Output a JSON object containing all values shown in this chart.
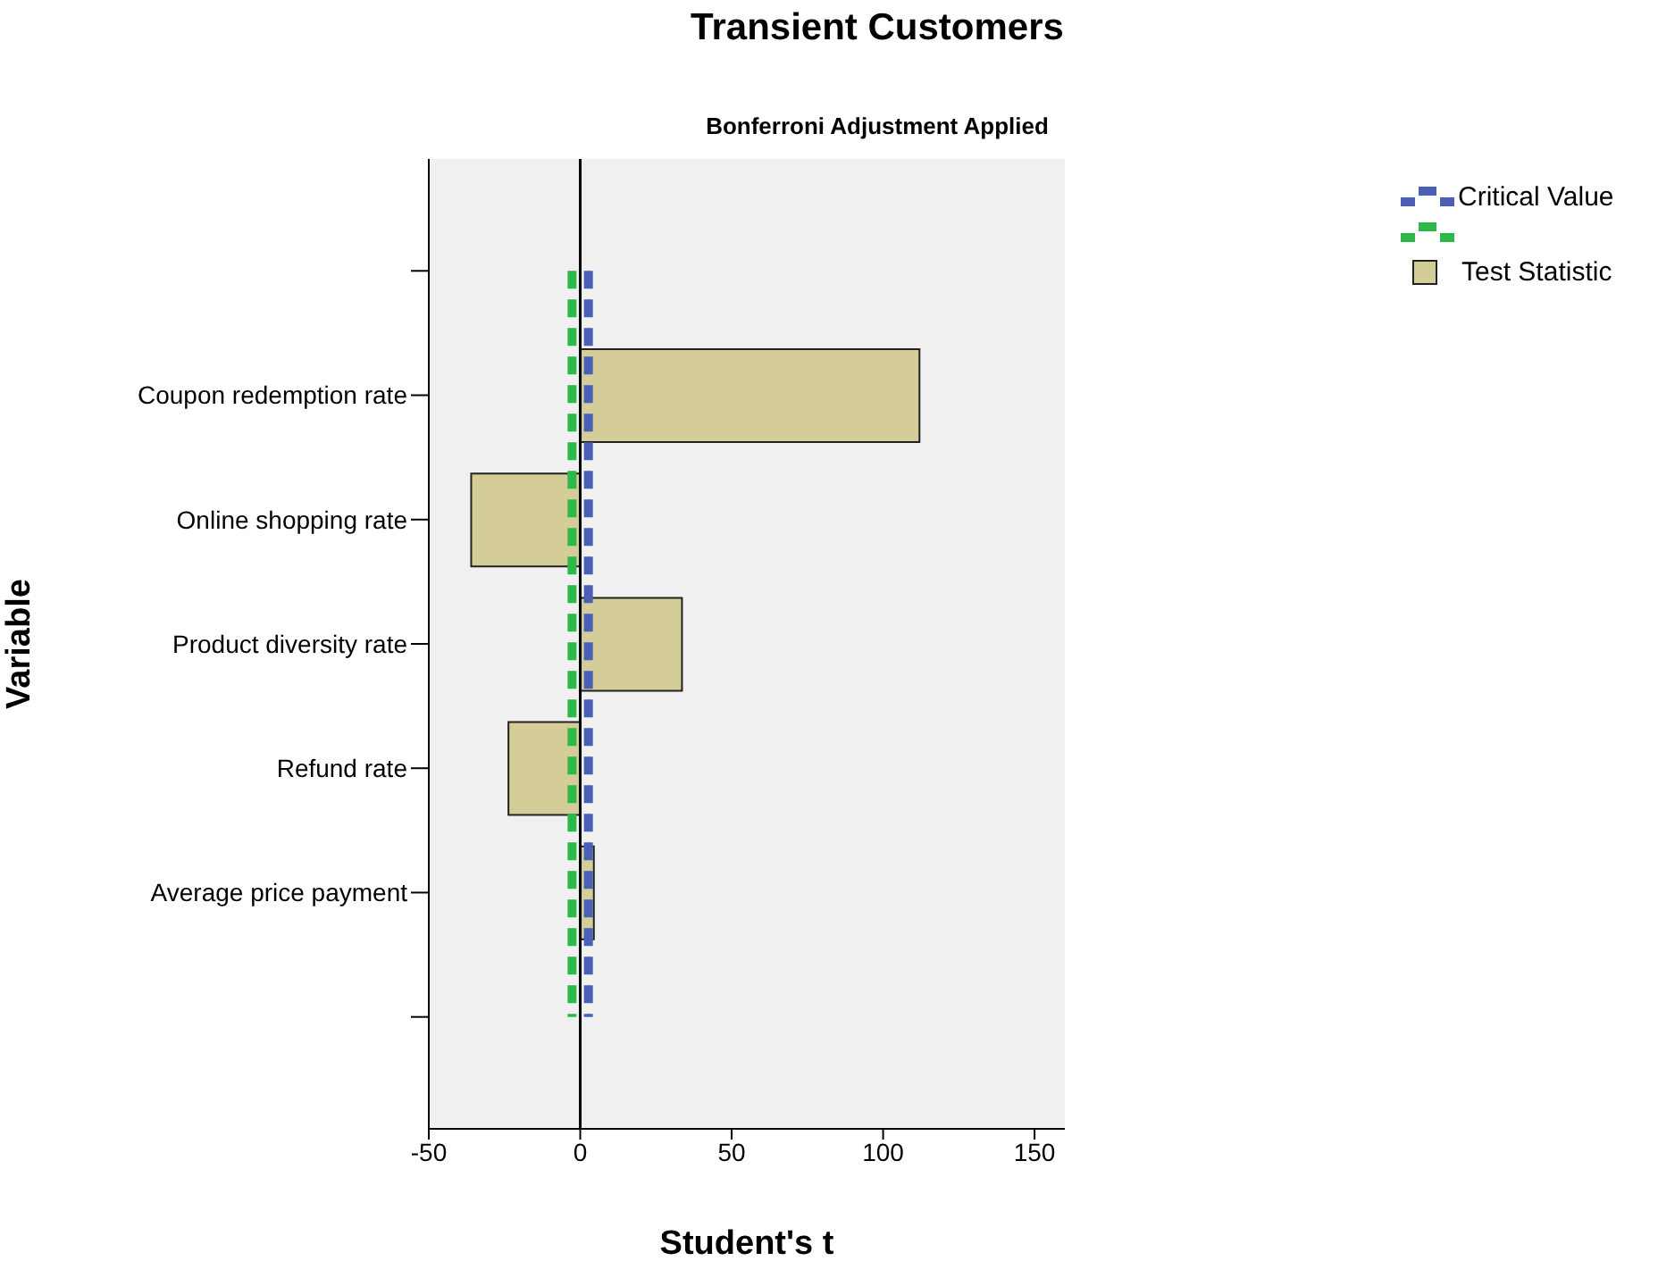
{
  "chart_data": {
    "type": "bar",
    "orientation": "horizontal",
    "title": "Transient Customers",
    "subtitle": "Bonferroni Adjustment Applied",
    "xlabel": "Student's t",
    "ylabel": "Variable",
    "categories": [
      null,
      "Coupon redemption rate",
      "Online shopping rate",
      "Product diversity rate",
      "Refund rate",
      "Average price payment",
      null
    ],
    "series": [
      {
        "name": "Test Statistic",
        "color": "#d4cd98",
        "values": [
          null,
          112,
          -36,
          33.6,
          -23.7,
          4.5,
          null
        ]
      }
    ],
    "xlim": [
      -50,
      160
    ],
    "xticks": [
      -50,
      0,
      50,
      100,
      150
    ],
    "ref_lines": [
      {
        "axis": "x",
        "value": 0,
        "label": null,
        "color": "#000000",
        "line_style": "solid"
      },
      {
        "axis": "x",
        "value": 2.7,
        "label": "Critical Value",
        "color": "#4a5fb5",
        "line_style": "dashed"
      },
      {
        "axis": "x",
        "value": -2.7,
        "label": null,
        "color": "#2db84a",
        "line_style": "dashed"
      }
    ],
    "grid": false,
    "legend": "top right"
  }
}
